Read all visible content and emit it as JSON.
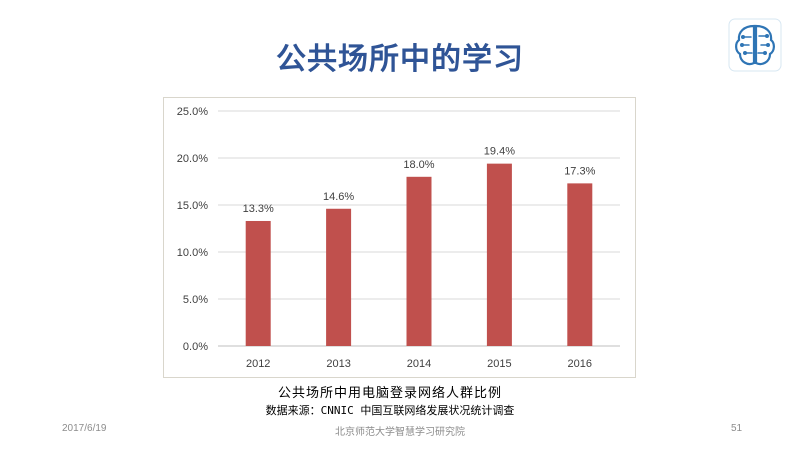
{
  "slide": {
    "title": "公共场所中的学习",
    "caption": "公共场所中用电脑登录网络人群比例",
    "source": "数据来源：CNNIC 中国互联网络发展状况统计调查",
    "footer_date": "2017/6/19",
    "footer_center": "北京师范大学智慧学习研究院",
    "page_number": "51",
    "logo_icon": "brain-circuit-icon"
  },
  "chart_data": {
    "type": "bar",
    "categories": [
      "2012",
      "2013",
      "2014",
      "2015",
      "2016"
    ],
    "values": [
      13.3,
      14.6,
      18.0,
      19.4,
      17.3
    ],
    "value_labels": [
      "13.3%",
      "14.6%",
      "18.0%",
      "19.4%",
      "17.3%"
    ],
    "y_ticks": [
      "0.0%",
      "5.0%",
      "10.0%",
      "15.0%",
      "20.0%",
      "25.0%"
    ],
    "ylim": [
      0,
      25
    ],
    "grid": true,
    "bar_color": "#c0504d",
    "title": "",
    "xlabel": "",
    "ylabel": ""
  }
}
